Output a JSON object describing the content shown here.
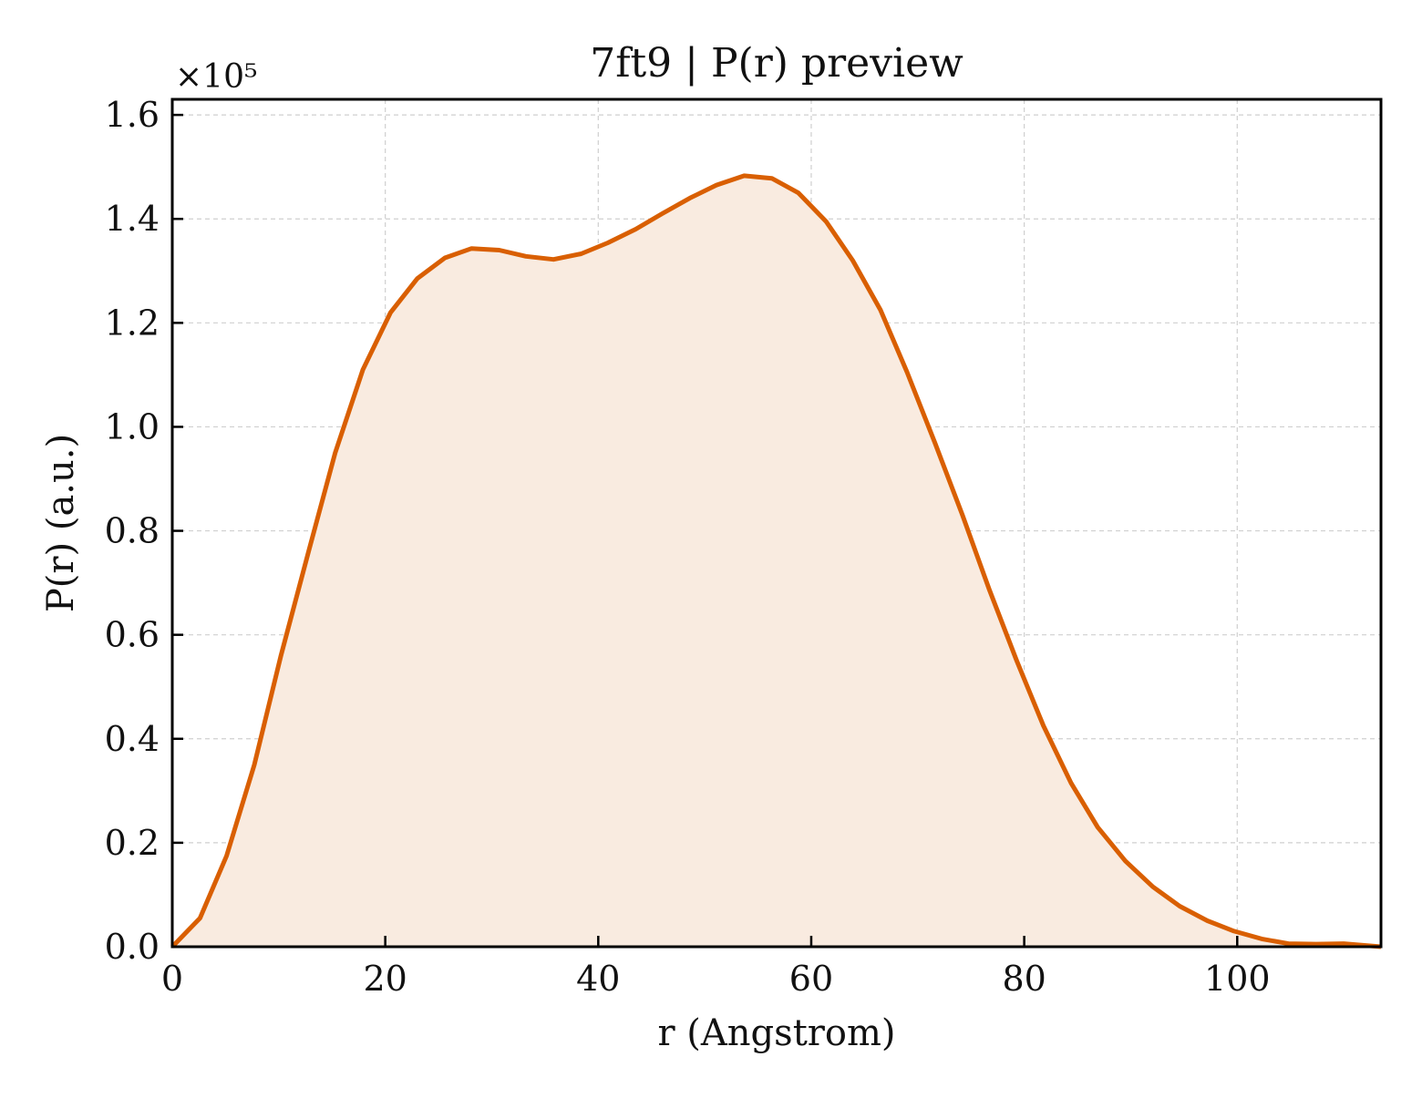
{
  "chart_data": {
    "type": "area",
    "title": "7ft9 | P(r) preview",
    "xlabel": "r (Angstrom)",
    "ylabel": "P(r) (a.u.)",
    "y_scale_label": "×10⁵",
    "y_multiplier": 100000,
    "xlim": [
      0,
      113.5
    ],
    "ylim": [
      0,
      1.63
    ],
    "x_ticks": [
      0,
      20,
      40,
      60,
      80,
      100
    ],
    "x_tick_labels": [
      "0",
      "20",
      "40",
      "60",
      "80",
      "100"
    ],
    "y_ticks": [
      0.0,
      0.2,
      0.4,
      0.6,
      0.8,
      1.0,
      1.2,
      1.4,
      1.6
    ],
    "y_tick_labels": [
      "0.0",
      "0.2",
      "0.4",
      "0.6",
      "0.8",
      "1.0",
      "1.2",
      "1.4",
      "1.6"
    ],
    "grid": true,
    "line_color": "#d95f02",
    "fill_color": "#f9ebe0",
    "series": [
      {
        "x": [
          0,
          2.6,
          5.1,
          7.7,
          10.2,
          12.8,
          15.3,
          17.9,
          20.5,
          23.0,
          25.6,
          28.1,
          30.7,
          33.2,
          35.8,
          38.4,
          40.9,
          43.5,
          46.0,
          48.6,
          51.1,
          53.7,
          56.3,
          58.8,
          61.4,
          63.9,
          66.5,
          69.0,
          71.6,
          74.2,
          76.7,
          79.3,
          81.8,
          84.4,
          86.9,
          89.5,
          92.1,
          94.6,
          97.2,
          99.7,
          102.3,
          104.8,
          107.4,
          110.0,
          113.5
        ],
        "y": [
          0.0,
          0.055,
          0.175,
          0.35,
          0.56,
          0.76,
          0.95,
          1.11,
          1.22,
          1.285,
          1.325,
          1.343,
          1.34,
          1.328,
          1.322,
          1.333,
          1.354,
          1.38,
          1.41,
          1.44,
          1.465,
          1.483,
          1.478,
          1.45,
          1.395,
          1.32,
          1.225,
          1.105,
          0.97,
          0.83,
          0.688,
          0.55,
          0.425,
          0.315,
          0.23,
          0.165,
          0.115,
          0.078,
          0.05,
          0.03,
          0.015,
          0.006,
          0.005,
          0.006,
          0.0
        ]
      }
    ]
  }
}
